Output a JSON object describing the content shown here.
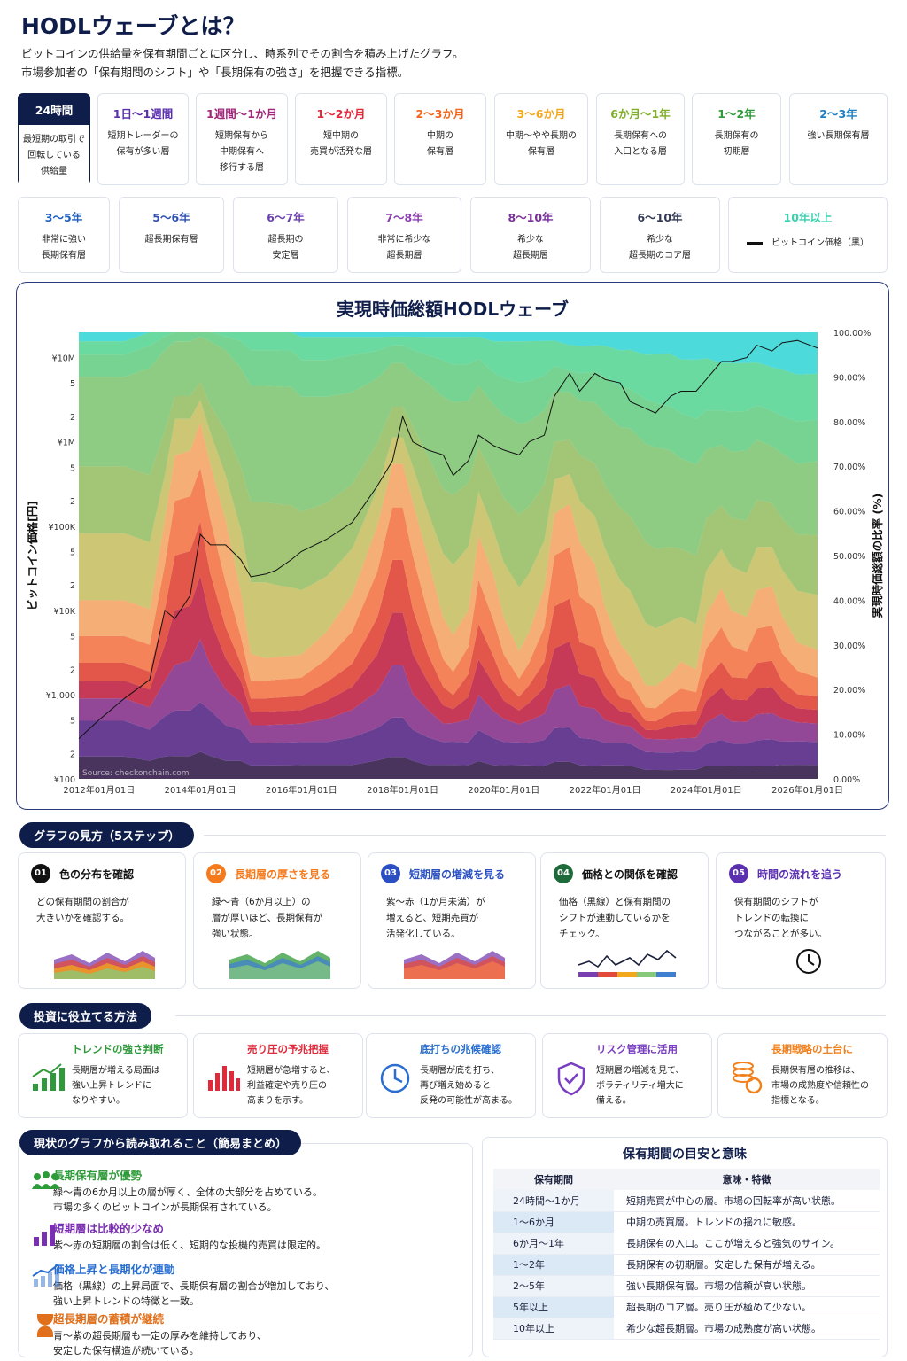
{
  "header": {
    "title": "HODLウェーブとは？",
    "desc_1": "ビットコインの供給量を保有期間ごとに区分し、時系列でその割合を積み上げたグラフ。",
    "desc_2": "市場参加者の「保有期間のシフト」や「長期保有の強さ」を把握できる指標。"
  },
  "bands_row1": [
    {
      "label": "24時間",
      "desc": "最短期の取引で\n回転している\n供給量",
      "color": "#ffffff"
    },
    {
      "label": "1日〜1週間",
      "desc": "短期トレーダーの\n保有が多い層",
      "color": "#5b2fb0"
    },
    {
      "label": "1週間〜1か月",
      "desc": "短期保有から\n中期保有へ\n移行する層",
      "color": "#a0277a"
    },
    {
      "label": "1〜2か月",
      "desc": "短中期の\n売買が活発な層",
      "color": "#e02a3a"
    },
    {
      "label": "2〜3か月",
      "desc": "中期の\n保有層",
      "color": "#f2651c"
    },
    {
      "label": "3〜6か月",
      "desc": "中期〜やや長期の\n保有層",
      "color": "#f2a81c"
    },
    {
      "label": "6か月〜1年",
      "desc": "長期保有への\n入口となる層",
      "color": "#7fae2a"
    },
    {
      "label": "1〜2年",
      "desc": "長期保有の\n初期層",
      "color": "#2f9a3a"
    },
    {
      "label": "2〜3年",
      "desc": "強い長期保有層",
      "color": "#1f7fc0"
    }
  ],
  "bands_row2": [
    {
      "label": "3〜5年",
      "desc": "非常に強い\n長期保有層",
      "color": "#1f5fc0"
    },
    {
      "label": "5〜6年",
      "desc": "超長期保有層",
      "color": "#2f4fb0"
    },
    {
      "label": "6〜7年",
      "desc": "超長期の\n安定層",
      "color": "#6a3fb0"
    },
    {
      "label": "7〜8年",
      "desc": "非常に希少な\n超長期層",
      "color": "#8a3fb0"
    },
    {
      "label": "8〜10年",
      "desc": "希少な\n超長期層",
      "color": "#7a2f9a"
    },
    {
      "label": "6〜10年",
      "desc": "希少な\n超長期のコア層",
      "color": "#333a55"
    },
    {
      "label": "10年以上",
      "desc": "ビットコイン価格（黒）",
      "color": "#3fd0b0"
    }
  ],
  "chart": {
    "title": "実現時価総額HODLウェーブ",
    "source": "Source: checkonchain.com"
  },
  "chart_data": {
    "type": "area",
    "title": "実現時価総額HODLウェーブ",
    "ylabel_left": "ビットコイン価格[円]",
    "ylabel_right": "実現時価総額の比率 (%)",
    "x_ticks": [
      "2012年01月01日",
      "2014年01月01日",
      "2016年01月01日",
      "2018年01月01日",
      "2020年01月01日",
      "2022年01月01日",
      "2024年01月01日",
      "2026年01月01日"
    ],
    "x_range": [
      2011.6,
      2026.2
    ],
    "y_right_ticks": [
      "0.00%",
      "10.00%",
      "20.00%",
      "30.00%",
      "40.00%",
      "50.00%",
      "60.00%",
      "70.00%",
      "80.00%",
      "90.00%",
      "100.00%"
    ],
    "y_right_range": [
      0,
      100
    ],
    "y_left_ticks": [
      {
        "v": 100,
        "t": "¥100"
      },
      {
        "v": 200,
        "t": "2"
      },
      {
        "v": 500,
        "t": "5"
      },
      {
        "v": 1000,
        "t": "¥1,000"
      },
      {
        "v": 2000,
        "t": "2"
      },
      {
        "v": 5000,
        "t": "5"
      },
      {
        "v": 10000,
        "t": "¥10K"
      },
      {
        "v": 20000,
        "t": "2"
      },
      {
        "v": 50000,
        "t": "5"
      },
      {
        "v": 100000,
        "t": "¥100K"
      },
      {
        "v": 200000,
        "t": "2"
      },
      {
        "v": 500000,
        "t": "5"
      },
      {
        "v": 1000000,
        "t": "¥1M"
      },
      {
        "v": 2000000,
        "t": "2"
      },
      {
        "v": 5000000,
        "t": "5"
      },
      {
        "v": 10000000,
        "t": "¥10M"
      }
    ],
    "y_left_range": [
      100,
      20000000
    ],
    "y_left_scale": "log",
    "x": [
      2011.6,
      2012.0,
      2012.5,
      2013.0,
      2013.3,
      2013.5,
      2013.8,
      2014.0,
      2014.2,
      2014.5,
      2014.8,
      2015.0,
      2015.3,
      2015.5,
      2015.8,
      2016.0,
      2016.5,
      2017.0,
      2017.5,
      2017.8,
      2018.0,
      2018.2,
      2018.5,
      2018.8,
      2019.0,
      2019.3,
      2019.5,
      2019.8,
      2020.0,
      2020.3,
      2020.5,
      2020.8,
      2021.0,
      2021.3,
      2021.5,
      2021.8,
      2022.0,
      2022.3,
      2022.5,
      2022.8,
      2023.0,
      2023.3,
      2023.5,
      2023.8,
      2024.0,
      2024.3,
      2024.5,
      2024.8,
      2025.0,
      2025.3,
      2025.5,
      2025.8,
      2026.2
    ],
    "price": [
      300,
      500,
      900,
      1500,
      10000,
      8000,
      15000,
      80000,
      60000,
      60000,
      40000,
      25000,
      27000,
      30000,
      40000,
      50000,
      70000,
      110000,
      300000,
      600000,
      2000000,
      1000000,
      800000,
      700000,
      400000,
      600000,
      1200000,
      900000,
      800000,
      700000,
      1000000,
      1200000,
      3500000,
      6500000,
      4000000,
      6500000,
      5500000,
      5000000,
      3000000,
      2500000,
      2200000,
      3500000,
      4000000,
      4000000,
      5500000,
      9000000,
      9000000,
      10000000,
      14000000,
      12000000,
      15000000,
      16000000,
      13000000
    ],
    "series": [
      {
        "name": "24時間",
        "color": "#3a2450",
        "values": [
          5,
          5,
          5,
          4,
          5,
          5,
          5,
          6,
          5,
          4,
          4,
          3,
          3,
          3,
          3,
          3,
          3,
          3,
          4,
          5,
          5,
          4,
          3,
          3,
          3,
          3,
          4,
          3,
          3,
          3,
          3,
          3,
          4,
          4,
          3,
          3,
          3,
          3,
          3,
          2,
          2,
          2,
          2,
          2,
          3,
          3,
          3,
          3,
          3,
          3,
          3,
          3,
          3
        ]
      },
      {
        "name": "1日〜1週間",
        "color": "#5b2f8a",
        "values": [
          8,
          8,
          8,
          7,
          9,
          10,
          10,
          11,
          10,
          8,
          7,
          5,
          5,
          5,
          5,
          5,
          5,
          6,
          7,
          9,
          9,
          7,
          6,
          5,
          5,
          5,
          7,
          6,
          5,
          5,
          5,
          6,
          8,
          8,
          6,
          6,
          5,
          5,
          5,
          4,
          4,
          4,
          4,
          4,
          5,
          6,
          5,
          5,
          6,
          6,
          5,
          5,
          5
        ]
      },
      {
        "name": "1週間〜1か月",
        "color": "#8a3a8f",
        "values": [
          5,
          5,
          5,
          5,
          8,
          10,
          11,
          14,
          10,
          8,
          6,
          4,
          4,
          4,
          4,
          4,
          5,
          6,
          8,
          12,
          12,
          8,
          6,
          4,
          4,
          5,
          8,
          6,
          5,
          4,
          5,
          6,
          9,
          10,
          7,
          7,
          5,
          4,
          4,
          3,
          3,
          3,
          3,
          3,
          5,
          6,
          5,
          5,
          6,
          6,
          5,
          4,
          4
        ]
      },
      {
        "name": "1〜2か月",
        "color": "#c22a4a",
        "values": [
          4,
          4,
          4,
          4,
          8,
          12,
          12,
          14,
          10,
          7,
          5,
          3,
          3,
          3,
          3,
          3,
          4,
          5,
          8,
          12,
          12,
          9,
          6,
          4,
          3,
          5,
          8,
          6,
          4,
          3,
          4,
          6,
          10,
          10,
          7,
          7,
          5,
          3,
          3,
          2,
          2,
          3,
          3,
          3,
          5,
          6,
          5,
          5,
          6,
          6,
          4,
          3,
          3
        ]
      },
      {
        "name": "2〜3か月",
        "color": "#e24a3c",
        "values": [
          4,
          4,
          4,
          4,
          8,
          12,
          12,
          12,
          10,
          7,
          4,
          3,
          3,
          3,
          3,
          3,
          4,
          5,
          8,
          12,
          12,
          10,
          6,
          4,
          3,
          5,
          8,
          6,
          4,
          3,
          4,
          6,
          10,
          10,
          7,
          7,
          5,
          3,
          3,
          2,
          2,
          3,
          3,
          3,
          5,
          6,
          5,
          5,
          6,
          6,
          4,
          3,
          3
        ]
      },
      {
        "name": "3〜6か月",
        "color": "#f57a4c",
        "values": [
          6,
          6,
          6,
          6,
          10,
          12,
          12,
          12,
          12,
          10,
          6,
          4,
          4,
          4,
          4,
          4,
          5,
          7,
          10,
          12,
          12,
          12,
          9,
          6,
          5,
          6,
          10,
          8,
          6,
          4,
          5,
          8,
          12,
          12,
          10,
          9,
          7,
          5,
          4,
          3,
          3,
          4,
          5,
          4,
          7,
          8,
          7,
          6,
          8,
          8,
          6,
          5,
          4
        ]
      },
      {
        "name": "6か月〜1年",
        "color": "#f5a86a",
        "values": [
          8,
          8,
          8,
          8,
          10,
          10,
          10,
          10,
          12,
          14,
          10,
          6,
          5,
          5,
          5,
          5,
          6,
          8,
          10,
          10,
          10,
          12,
          12,
          9,
          8,
          8,
          10,
          10,
          8,
          6,
          7,
          9,
          10,
          10,
          12,
          10,
          8,
          7,
          6,
          5,
          5,
          5,
          6,
          5,
          8,
          9,
          8,
          8,
          9,
          9,
          8,
          6,
          6
        ]
      },
      {
        "name": "1〜2年",
        "color": "#c9c26a",
        "values": [
          15,
          15,
          15,
          15,
          10,
          8,
          7,
          5,
          7,
          10,
          14,
          16,
          17,
          16,
          15,
          14,
          12,
          10,
          8,
          6,
          6,
          8,
          10,
          14,
          15,
          14,
          10,
          10,
          12,
          14,
          13,
          11,
          8,
          7,
          9,
          11,
          13,
          14,
          15,
          14,
          13,
          12,
          10,
          10,
          10,
          9,
          10,
          10,
          10,
          9,
          10,
          11,
          12
        ]
      },
      {
        "name": "2〜3年",
        "color": "#9bc26a",
        "values": [
          15,
          15,
          15,
          15,
          10,
          5,
          5,
          4,
          6,
          10,
          14,
          18,
          18,
          18,
          18,
          17,
          16,
          14,
          10,
          7,
          7,
          9,
          12,
          14,
          15,
          14,
          10,
          12,
          14,
          16,
          15,
          13,
          9,
          8,
          10,
          12,
          14,
          16,
          17,
          18,
          18,
          17,
          15,
          15,
          12,
          10,
          11,
          12,
          11,
          10,
          11,
          12,
          13
        ]
      },
      {
        "name": "3〜5年",
        "color": "#86c97a",
        "values": [
          20,
          20,
          20,
          24,
          18,
          12,
          12,
          10,
          14,
          18,
          22,
          26,
          26,
          26,
          26,
          25,
          23,
          20,
          14,
          10,
          10,
          12,
          16,
          20,
          20,
          18,
          14,
          16,
          18,
          20,
          19,
          17,
          12,
          11,
          12,
          14,
          16,
          18,
          20,
          22,
          23,
          22,
          20,
          20,
          16,
          14,
          15,
          16,
          14,
          13,
          14,
          15,
          16
        ]
      },
      {
        "name": "5〜6年",
        "color": "#6cd08a",
        "values": [
          5,
          5,
          5,
          5,
          3,
          2,
          2,
          1,
          2,
          3,
          6,
          8,
          8,
          8,
          8,
          8,
          8,
          8,
          6,
          4,
          4,
          5,
          6,
          8,
          8,
          8,
          6,
          7,
          8,
          9,
          9,
          8,
          6,
          5,
          6,
          7,
          8,
          9,
          9,
          10,
          10,
          10,
          10,
          10,
          9,
          8,
          9,
          9,
          8,
          8,
          8,
          9,
          9
        ]
      },
      {
        "name": "6〜10年",
        "color": "#5fd89a",
        "values": [
          3,
          3,
          3,
          3,
          1,
          0,
          0,
          0,
          0,
          1,
          2,
          4,
          4,
          4,
          4,
          5,
          5,
          4,
          3,
          2,
          2,
          3,
          4,
          5,
          6,
          6,
          5,
          7,
          8,
          9,
          9,
          8,
          6,
          6,
          6,
          6,
          7,
          8,
          9,
          10,
          11,
          12,
          12,
          13,
          12,
          11,
          11,
          11,
          10,
          10,
          10,
          10,
          10
        ]
      },
      {
        "name": "10年以上",
        "color": "#3fd8d8",
        "values": [
          2,
          2,
          2,
          0,
          0,
          0,
          0,
          0,
          0,
          0,
          0,
          0,
          0,
          0,
          0,
          1,
          1,
          1,
          1,
          1,
          1,
          1,
          1,
          1,
          1,
          1,
          1,
          2,
          2,
          2,
          2,
          2,
          2,
          3,
          3,
          3,
          3,
          4,
          4,
          5,
          5,
          5,
          6,
          6,
          6,
          7,
          7,
          7,
          7,
          8,
          8,
          9,
          9
        ]
      }
    ]
  },
  "steps_pill": "グラフの見方（5ステップ）",
  "steps": [
    {
      "num": "01",
      "title": "色の分布を確認",
      "desc": "どの保有期間の割合が\n大きいかを確認する。",
      "color": "#111111"
    },
    {
      "num": "02",
      "title": "長期層の厚さを見る",
      "desc": "緑〜青（6か月以上）の\n層が厚いほど、長期保有が\n強い状態。",
      "color": "#f57a1c"
    },
    {
      "num": "03",
      "title": "短期層の増減を見る",
      "desc": "紫〜赤（1か月未満）が\n増えると、短期売買が\n活発化している。",
      "color": "#2a4fc0"
    },
    {
      "num": "04",
      "title": "価格との関係を確認",
      "desc": "価格（黒線）と保有期間の\nシフトが連動しているかを\nチェック。",
      "color": "#1f6a3a"
    },
    {
      "num": "05",
      "title": "時間の流れを追う",
      "desc": "保有期間のシフトが\nトレンドの転換に\nつながることが多い。",
      "color": "#5a2fb0"
    }
  ],
  "tips_pill": "投資に役立てる方法",
  "tips": [
    {
      "title": "トレンドの強さ判断",
      "desc": "長期層が増える局面は\n強い上昇トレンドに\nなりやすい。",
      "color": "#2f9a3a"
    },
    {
      "title": "売り圧の予兆把握",
      "desc": "短期層が急増すると、\n利益確定や売り圧の\n高まりを示す。",
      "color": "#e02a3a"
    },
    {
      "title": "底打ちの兆候確認",
      "desc": "長期層が底を打ち、\n再び増え始めると\n反発の可能性が高まる。",
      "color": "#2a6fd0"
    },
    {
      "title": "リスク管理に活用",
      "desc": "短期層の増減を見て、\nボラティリティ増大に\n備える。",
      "color": "#7a3fc0"
    },
    {
      "title": "長期戦略の土台に",
      "desc": "長期保有層の推移は、\n市場の成熟度や信頼性の\n指標となる。",
      "color": "#f2801c"
    }
  ],
  "summary_pill": "現状のグラフから読み取れること（簡易まとめ）",
  "summary": [
    {
      "title": "長期保有層が優勢",
      "desc": "緑〜青の6か月以上の層が厚く、全体の大部分を占めている。\n市場の多くのビットコインが長期保有されている。",
      "color": "#2f9a3a"
    },
    {
      "title": "短期層は比較的少なめ",
      "desc": "紫〜赤の短期層の割合は低く、短期的な投機的売買は限定的。",
      "color": "#7a2fb0"
    },
    {
      "title": "価格上昇と長期化が連動",
      "desc": "価格（黒線）の上昇局面で、長期保有層の割合が増加しており、\n強い上昇トレンドの特徴と一致。",
      "color": "#2a6fd0"
    },
    {
      "title": "超長期層の蓄積が継続",
      "desc": "青〜紫の超長期層も一定の厚みを維持しており、\n安定した保有構造が続いている。",
      "color": "#e0701c"
    }
  ],
  "table": {
    "title": "保有期間の目安と意味",
    "headers": [
      "保有期間",
      "意味・特徴"
    ],
    "rows": [
      [
        "24時間〜1か月",
        "短期売買が中心の層。市場の回転率が高い状態。"
      ],
      [
        "1〜6か月",
        "中期の売買層。トレンドの揺れに敏感。"
      ],
      [
        "6か月〜1年",
        "長期保有の入口。ここが増えると強気のサイン。"
      ],
      [
        "1〜2年",
        "長期保有の初期層。安定した保有が増える。"
      ],
      [
        "2〜5年",
        "強い長期保有層。市場の信頼が高い状態。"
      ],
      [
        "5年以上",
        "超長期のコア層。売り圧が極めて少ない。"
      ],
      [
        "10年以上",
        "希少な超長期層。市場の成熟度が高い状態。"
      ]
    ]
  }
}
